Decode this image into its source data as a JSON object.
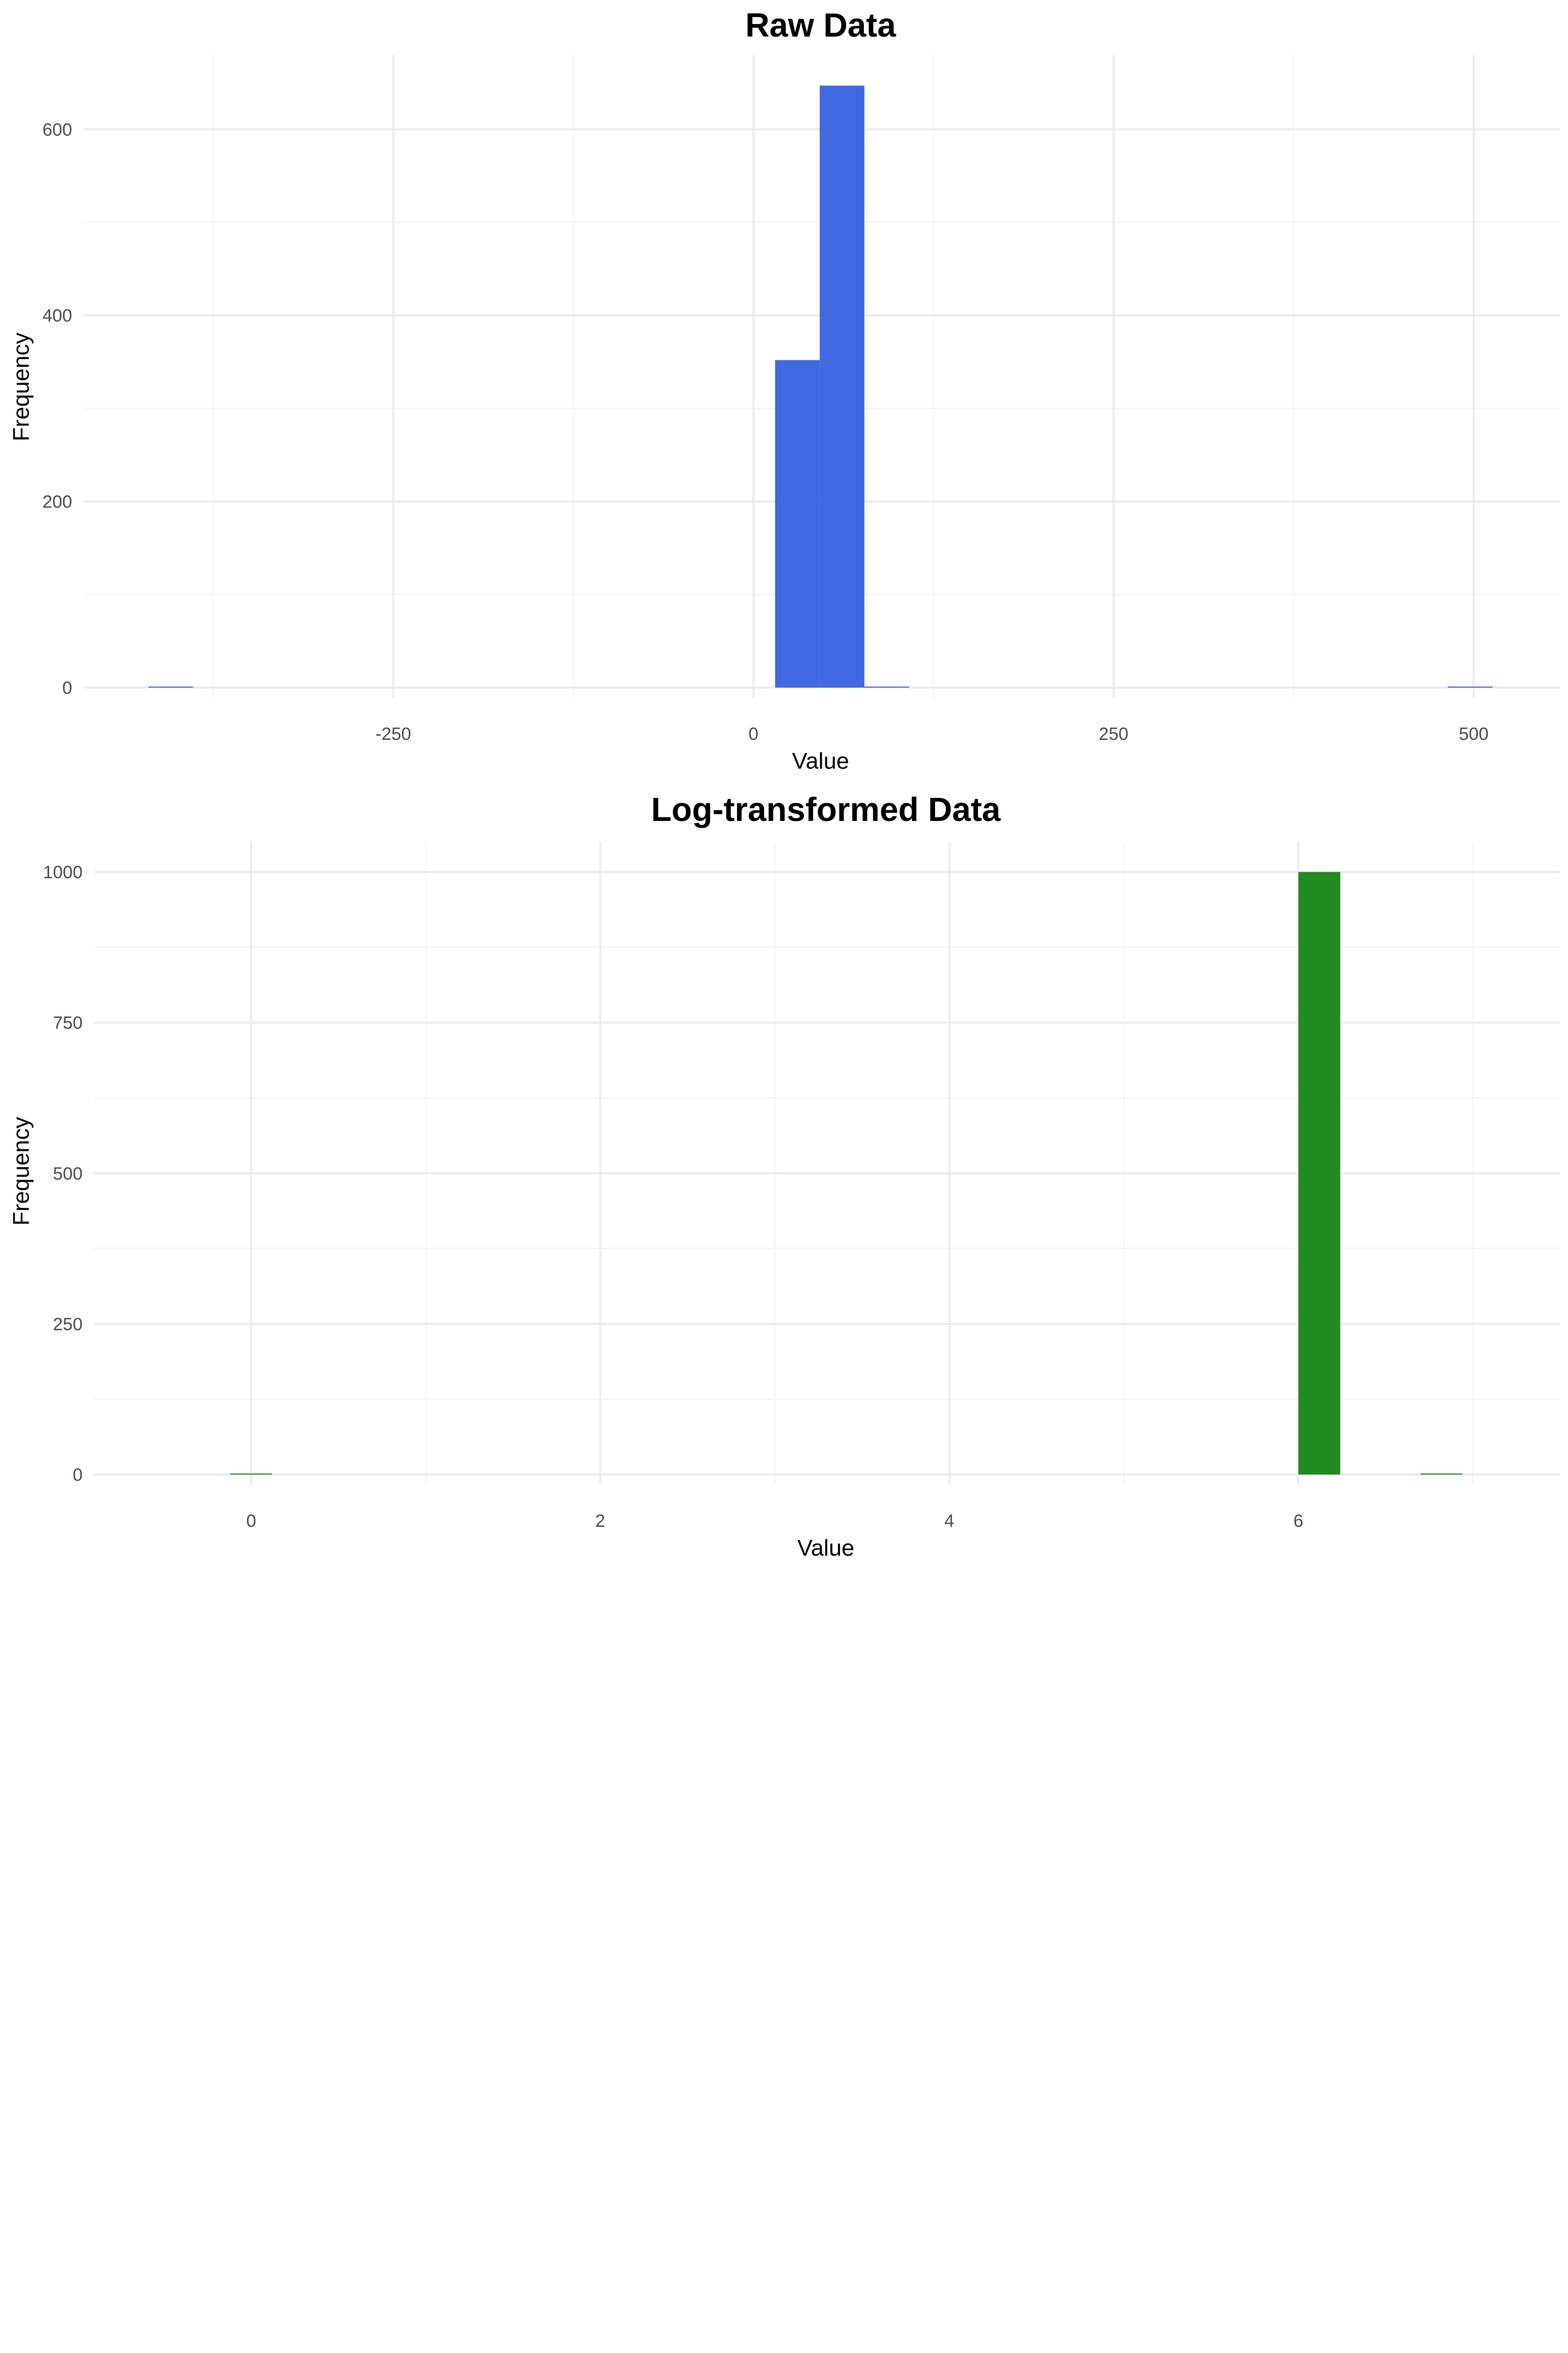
{
  "chart_data": [
    {
      "type": "bar",
      "title": "Raw Data",
      "xlabel": "Value",
      "ylabel": "Frequency",
      "color": "#4169E1",
      "xlim": [
        -465,
        560
      ],
      "ylim": [
        0,
        680
      ],
      "x_ticks": [
        -250,
        0,
        250,
        500
      ],
      "x_tick_labels": [
        "-250",
        "0",
        "250",
        "500"
      ],
      "y_ticks": [
        0,
        200,
        400,
        600
      ],
      "y_tick_labels": [
        "0",
        "200",
        "400",
        "600"
      ],
      "grid": true,
      "bins": [
        {
          "x0": -420,
          "x1": -389,
          "count": 1
        },
        {
          "x0": 15,
          "x1": 46,
          "count": 352
        },
        {
          "x0": 46,
          "x1": 77,
          "count": 647
        },
        {
          "x0": 77,
          "x1": 108,
          "count": 1
        },
        {
          "x0": 482,
          "x1": 513,
          "count": 1
        }
      ]
    },
    {
      "type": "bar",
      "title": "Log-transformed Data",
      "xlabel": "Value",
      "ylabel": "Frequency",
      "color": "#228B22",
      "xlim": [
        -0.9,
        7.5
      ],
      "ylim": [
        0,
        1050
      ],
      "x_ticks": [
        0,
        2,
        4,
        6
      ],
      "x_tick_labels": [
        "0",
        "2",
        "4",
        "6"
      ],
      "y_ticks": [
        0,
        250,
        500,
        750,
        1000
      ],
      "y_tick_labels": [
        "0",
        "250",
        "500",
        "750",
        "1000"
      ],
      "grid": true,
      "bins": [
        {
          "x0": -0.12,
          "x1": 0.12,
          "count": 1
        },
        {
          "x0": 6.0,
          "x1": 6.24,
          "count": 1000
        },
        {
          "x0": 6.7,
          "x1": 6.94,
          "count": 1
        }
      ]
    }
  ]
}
